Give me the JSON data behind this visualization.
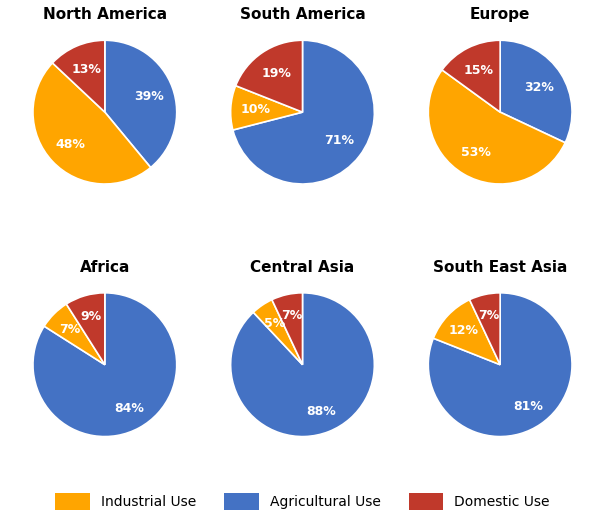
{
  "regions": [
    "North America",
    "South America",
    "Europe",
    "Africa",
    "Central Asia",
    "South East Asia"
  ],
  "data": {
    "North America": [
      39,
      48,
      13
    ],
    "South America": [
      71,
      10,
      19
    ],
    "Europe": [
      32,
      53,
      15
    ],
    "Africa": [
      84,
      7,
      9
    ],
    "Central Asia": [
      88,
      5,
      7
    ],
    "South East Asia": [
      81,
      12,
      7
    ]
  },
  "colors": [
    "#4472C4",
    "#FFA500",
    "#C0392B"
  ],
  "legend_labels": [
    "Industrial Use",
    "Agricultural Use",
    "Domestic Use"
  ],
  "legend_colors": [
    "#FFA500",
    "#4472C4",
    "#C0392B"
  ],
  "start_angles": {
    "North America": 90,
    "South America": 90,
    "Europe": 90,
    "Africa": 90,
    "Central Asia": 90,
    "South East Asia": 90
  },
  "background_color": "#FFFFFF",
  "title_fontsize": 11,
  "label_fontsize": 9,
  "legend_fontsize": 10,
  "pct_distances": {
    "North America": 0.65,
    "South America": 0.65,
    "Europe": 0.65,
    "Africa": 0.7,
    "Central Asia": 0.7,
    "South East Asia": 0.7
  }
}
